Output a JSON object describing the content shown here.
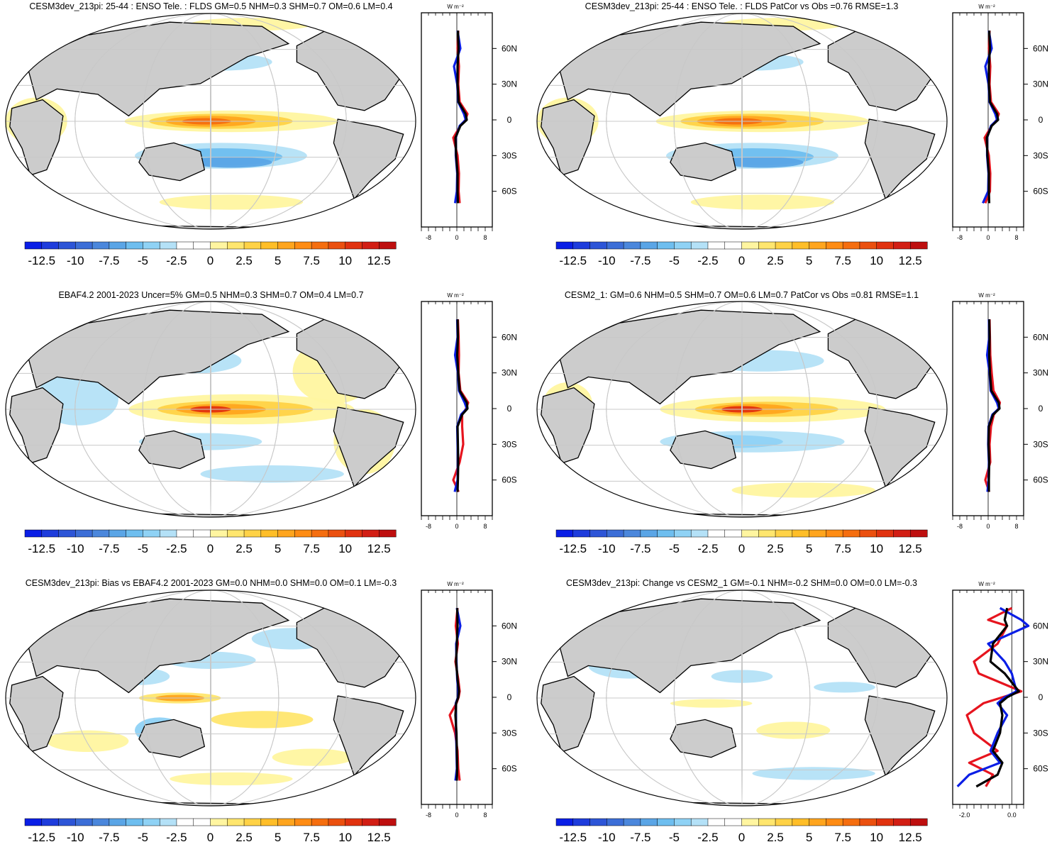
{
  "panels": [
    {
      "id": "p1",
      "title": "CESM3dev_213pi: 25-44 : ENSO Tele. : FLDS GM=0.5 NHM=0.3 SHM=0.7 OM=0.6 LM=0.4"
    },
    {
      "id": "p2",
      "title": "CESM3dev_213pi: 25-44 : ENSO Tele. : FLDS PatCor vs Obs =0.76 RMSE=1.3"
    },
    {
      "id": "p3",
      "title": "EBAF4.2 2001-2023 Uncer=5% GM=0.5 NHM=0.3 SHM=0.7 OM=0.4 LM=0.7"
    },
    {
      "id": "p4",
      "title": "CESM2_1: GM=0.6 NHM=0.5 SHM=0.7 OM=0.6 LM=0.7 PatCor vs Obs =0.81 RMSE=1.1"
    },
    {
      "id": "p5",
      "title": "CESM3dev_213pi: Bias vs EBAF4.2 2001-2023 GM=0.0 NHM=0.0 SHM=0.0 OM=0.1 LM=-0.3"
    },
    {
      "id": "p6",
      "title": "CESM3dev_213pi: Change vs CESM2_1 GM=-0.1 NHM=-0.2 SHM=0.0 OM=0.0 LM=-0.3"
    }
  ],
  "colorbar": {
    "labels": [
      "-12.5",
      "-10",
      "-7.5",
      "-5",
      "-2.5",
      "0",
      "2.5",
      "5",
      "7.5",
      "10",
      "12.5"
    ],
    "colors": [
      "#0a1ee6",
      "#1e3cdc",
      "#2d55d7",
      "#3c6ed7",
      "#4b87dc",
      "#5aa5e6",
      "#6ebeef",
      "#8fd2f5",
      "#b4e1f7",
      "#ffffff",
      "#ffffff",
      "#fff5a0",
      "#ffe66e",
      "#ffd246",
      "#ffbe28",
      "#ffa51e",
      "#ff8c14",
      "#f56e0f",
      "#eb500f",
      "#e1320f",
      "#d21e14",
      "#be0f0f"
    ]
  },
  "profiles": {
    "unit": "W m⁻²",
    "lat_labels": [
      "60N",
      "30N",
      "0",
      "30S",
      "60S"
    ],
    "lat_values": [
      60,
      30,
      0,
      -30,
      -60
    ],
    "xticks_main": [
      "-8",
      "0",
      "8"
    ],
    "xticks_change": [
      "-2.0",
      "0.0"
    ],
    "series_colors": {
      "blue": "#0a1ee6",
      "red": "#e6141e",
      "black": "#000000"
    }
  },
  "chart_data": [
    {
      "type": "heatmap",
      "panel": "p1",
      "colorbar_ticks": [
        -12.5,
        -10,
        -7.5,
        -5,
        -2.5,
        0,
        2.5,
        5,
        7.5,
        10,
        12.5
      ],
      "profile": {
        "lat": [
          75,
          60,
          45,
          30,
          15,
          5,
          0,
          -5,
          -15,
          -30,
          -45,
          -60,
          -70
        ],
        "black": [
          0.3,
          0.5,
          0.2,
          0.2,
          0.5,
          2.5,
          2.8,
          1.0,
          -0.4,
          -0.2,
          0.2,
          0.2,
          0.3
        ],
        "blue": [
          0.2,
          1.0,
          -0.8,
          0.1,
          0.4,
          2.0,
          2.5,
          0.8,
          -0.3,
          -0.3,
          0.1,
          0.0,
          -0.5
        ],
        "red": [
          0.4,
          0.2,
          0.6,
          0.4,
          0.8,
          3.0,
          2.4,
          1.0,
          -1.0,
          0.2,
          0.6,
          0.5,
          0.8
        ],
        "xlim": [
          -10,
          10
        ]
      }
    },
    {
      "type": "heatmap",
      "panel": "p2",
      "colorbar_ticks": [
        -12.5,
        -10,
        -7.5,
        -5,
        -2.5,
        0,
        2.5,
        5,
        7.5,
        10,
        12.5
      ],
      "profile": {
        "lat": [
          75,
          60,
          45,
          30,
          15,
          5,
          0,
          -5,
          -15,
          -30,
          -45,
          -60,
          -70
        ],
        "black": [
          0.3,
          0.5,
          0.2,
          0.2,
          0.5,
          2.5,
          2.8,
          1.0,
          -0.4,
          -0.2,
          0.2,
          0.2,
          0.3
        ],
        "blue": [
          0.2,
          1.0,
          -0.8,
          0.1,
          0.4,
          2.0,
          2.5,
          0.8,
          -0.3,
          -0.3,
          0.1,
          0.0,
          -1.5
        ],
        "red": [
          0.4,
          0.2,
          0.6,
          0.4,
          0.8,
          3.0,
          2.4,
          1.0,
          -1.0,
          0.2,
          0.6,
          0.5,
          -0.8
        ],
        "xlim": [
          -10,
          10
        ]
      }
    },
    {
      "type": "heatmap",
      "panel": "p3",
      "colorbar_ticks": [
        -12.5,
        -10,
        -7.5,
        -5,
        -2.5,
        0,
        2.5,
        5,
        7.5,
        10,
        12.5
      ],
      "profile": {
        "lat": [
          75,
          60,
          45,
          30,
          15,
          5,
          0,
          -5,
          -15,
          -30,
          -45,
          -60,
          -70
        ],
        "black": [
          0.2,
          0.3,
          0.1,
          0.4,
          0.8,
          2.8,
          3.0,
          1.5,
          0.2,
          0.3,
          0.4,
          0.3,
          0.2
        ],
        "blue": [
          0.1,
          0.2,
          -0.5,
          0.3,
          0.6,
          2.2,
          2.8,
          1.2,
          0.1,
          0.2,
          0.3,
          0.2,
          -0.6
        ],
        "red": [
          0.3,
          0.5,
          0.6,
          0.5,
          1.0,
          3.2,
          2.6,
          1.5,
          1.5,
          1.8,
          0.8,
          -1.0,
          0.5
        ],
        "xlim": [
          -10,
          10
        ]
      }
    },
    {
      "type": "heatmap",
      "panel": "p4",
      "colorbar_ticks": [
        -12.5,
        -10,
        -7.5,
        -5,
        -2.5,
        0,
        2.5,
        5,
        7.5,
        10,
        12.5
      ],
      "profile": {
        "lat": [
          75,
          60,
          45,
          30,
          15,
          5,
          0,
          -5,
          -15,
          -30,
          -45,
          -60,
          -70
        ],
        "black": [
          0.3,
          0.4,
          0.3,
          0.5,
          0.9,
          3.0,
          3.2,
          1.4,
          0.2,
          0.1,
          0.3,
          0.2,
          0.2
        ],
        "blue": [
          0.2,
          0.3,
          -0.3,
          0.4,
          0.7,
          2.5,
          3.0,
          1.2,
          0.1,
          0.0,
          0.2,
          0.1,
          -0.2
        ],
        "red": [
          0.4,
          0.5,
          0.6,
          1.0,
          1.5,
          3.3,
          2.9,
          1.6,
          0.8,
          0.4,
          0.6,
          -0.8,
          0.3
        ],
        "xlim": [
          -10,
          10
        ]
      }
    },
    {
      "type": "heatmap",
      "panel": "p5",
      "colorbar_ticks": [
        -12.5,
        -10,
        -7.5,
        -5,
        -2.5,
        0,
        2.5,
        5,
        7.5,
        10,
        12.5
      ],
      "profile": {
        "lat": [
          75,
          60,
          45,
          30,
          15,
          5,
          0,
          -5,
          -15,
          -30,
          -45,
          -60,
          -70
        ],
        "black": [
          0.1,
          0.2,
          0.0,
          -0.2,
          0.2,
          0.6,
          0.4,
          -0.2,
          -0.4,
          -0.1,
          0.0,
          0.1,
          0.0
        ],
        "blue": [
          0.0,
          1.0,
          -0.2,
          -0.1,
          0.1,
          0.4,
          0.3,
          -0.3,
          -0.3,
          -0.2,
          -0.1,
          0.0,
          -0.4
        ],
        "red": [
          0.2,
          -0.3,
          0.3,
          -0.4,
          0.4,
          0.8,
          0.5,
          -0.1,
          -2.0,
          -0.5,
          0.2,
          0.4,
          0.8
        ],
        "xlim": [
          -10,
          10
        ]
      }
    },
    {
      "type": "heatmap",
      "panel": "p6",
      "colorbar_ticks": [
        -12.5,
        -10,
        -7.5,
        -5,
        -2.5,
        0,
        2.5,
        5,
        7.5,
        10,
        12.5
      ],
      "profile": {
        "lat": [
          75,
          65,
          60,
          45,
          30,
          20,
          5,
          0,
          -5,
          -15,
          -30,
          -45,
          -55,
          -65,
          -75
        ],
        "black": [
          -0.2,
          -0.3,
          -0.2,
          -0.8,
          -0.9,
          -0.3,
          0.3,
          -0.2,
          -0.5,
          -0.4,
          -0.5,
          -0.8,
          -0.4,
          -0.6,
          -1.5
        ],
        "blue": [
          -0.5,
          0.4,
          0.7,
          -1.0,
          -0.3,
          0.0,
          0.2,
          -0.3,
          -0.6,
          -0.2,
          -0.6,
          -0.9,
          -0.5,
          -1.8,
          -2.3
        ],
        "red": [
          0.0,
          -1.0,
          -0.2,
          -0.6,
          -1.6,
          -1.4,
          0.4,
          -0.4,
          -1.2,
          -1.9,
          -1.6,
          -0.6,
          -1.8,
          -0.8,
          -1.1
        ],
        "xlim": [
          -2.5,
          0.5
        ]
      }
    }
  ]
}
